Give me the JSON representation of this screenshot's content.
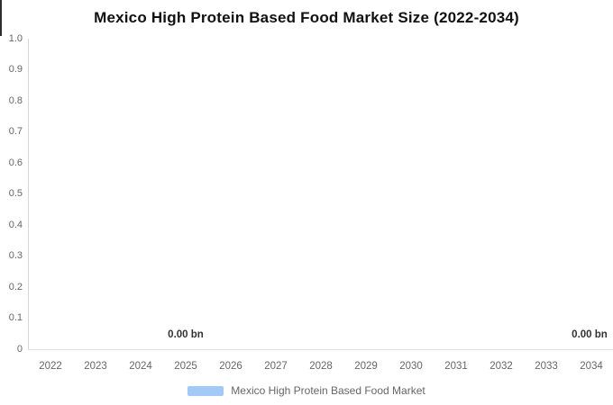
{
  "title": "Mexico High Protein Based Food Market Size (2022-2034)",
  "legend": {
    "label": "Mexico High Protein Based Food Market",
    "swatch_color": "#A3C9F6"
  },
  "colors": {
    "series_blue": "#A3C9F6",
    "title_text": "#111111",
    "axis_label": "#666666",
    "data_label": "#333333",
    "y_axis_line": "#D6D6D6",
    "x_axis_line": "#E2E2E2"
  },
  "chart_data": {
    "type": "bar",
    "title": "Mexico High Protein Based Food Market Size (2022-2034)",
    "categories": [
      "2022",
      "2023",
      "2024",
      "2025",
      "2026",
      "2027",
      "2028",
      "2029",
      "2030",
      "2031",
      "2032",
      "2033",
      "2034"
    ],
    "series": [
      {
        "name": "Mexico High Protein Based Food Market",
        "color": "#A3C9F6",
        "values": [
          0,
          0,
          0,
          0,
          0,
          0,
          0,
          0,
          0,
          0,
          0,
          0,
          0
        ]
      }
    ],
    "unit": "bn",
    "visible_data_labels": [
      {
        "category": "2025",
        "text": "0.00 bn"
      },
      {
        "category": "2034",
        "text": "0.00 bn"
      }
    ],
    "y_ticks": [
      "1.0",
      "0.9",
      "0.8",
      "0.7",
      "0.6",
      "0.5",
      "0.4",
      "0.3",
      "0.2",
      "0.1",
      "0"
    ],
    "ylim": [
      0,
      1
    ],
    "xlabel": "",
    "ylabel": "",
    "grid": false,
    "legend_position": "bottom"
  }
}
